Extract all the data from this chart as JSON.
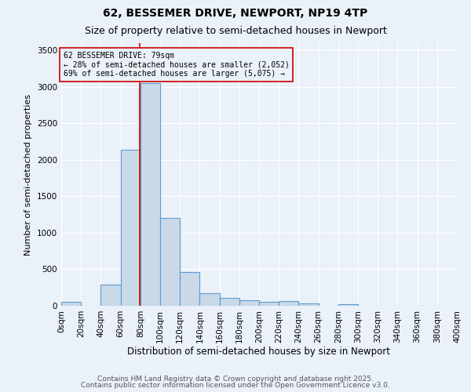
{
  "title1": "62, BESSEMER DRIVE, NEWPORT, NP19 4TP",
  "title2": "Size of property relative to semi-detached houses in Newport",
  "xlabel": "Distribution of semi-detached houses by size in Newport",
  "ylabel": "Number of semi-detached properties",
  "bin_edges": [
    0,
    20,
    40,
    60,
    80,
    100,
    120,
    140,
    160,
    180,
    200,
    220,
    240,
    260,
    280,
    300,
    320,
    340,
    360,
    380,
    400
  ],
  "bin_counts": [
    50,
    0,
    285,
    2140,
    3050,
    1200,
    460,
    175,
    110,
    70,
    55,
    60,
    30,
    0,
    25,
    0,
    0,
    0,
    0,
    0
  ],
  "bar_facecolor": "#c9d9e8",
  "bar_edgecolor": "#5b9bd5",
  "property_size": 79,
  "red_line_color": "#cc0000",
  "annotation_line1": "62 BESSEMER DRIVE: 79sqm",
  "annotation_line2": "← 28% of semi-detached houses are smaller (2,052)",
  "annotation_line3": "69% of semi-detached houses are larger (5,075) →",
  "annotation_box_edgecolor": "#cc0000",
  "annotation_fontsize": 7,
  "ylim": [
    0,
    3600
  ],
  "yticks": [
    0,
    500,
    1000,
    1500,
    2000,
    2500,
    3000,
    3500
  ],
  "background_color": "#eaf1f8",
  "grid_color": "#ffffff",
  "footer1": "Contains HM Land Registry data © Crown copyright and database right 2025.",
  "footer2": "Contains public sector information licensed under the Open Government Licence v3.0.",
  "title1_fontsize": 10,
  "title2_fontsize": 9,
  "xlabel_fontsize": 8.5,
  "ylabel_fontsize": 8,
  "tick_fontsize": 7.5,
  "footer_fontsize": 6.5
}
